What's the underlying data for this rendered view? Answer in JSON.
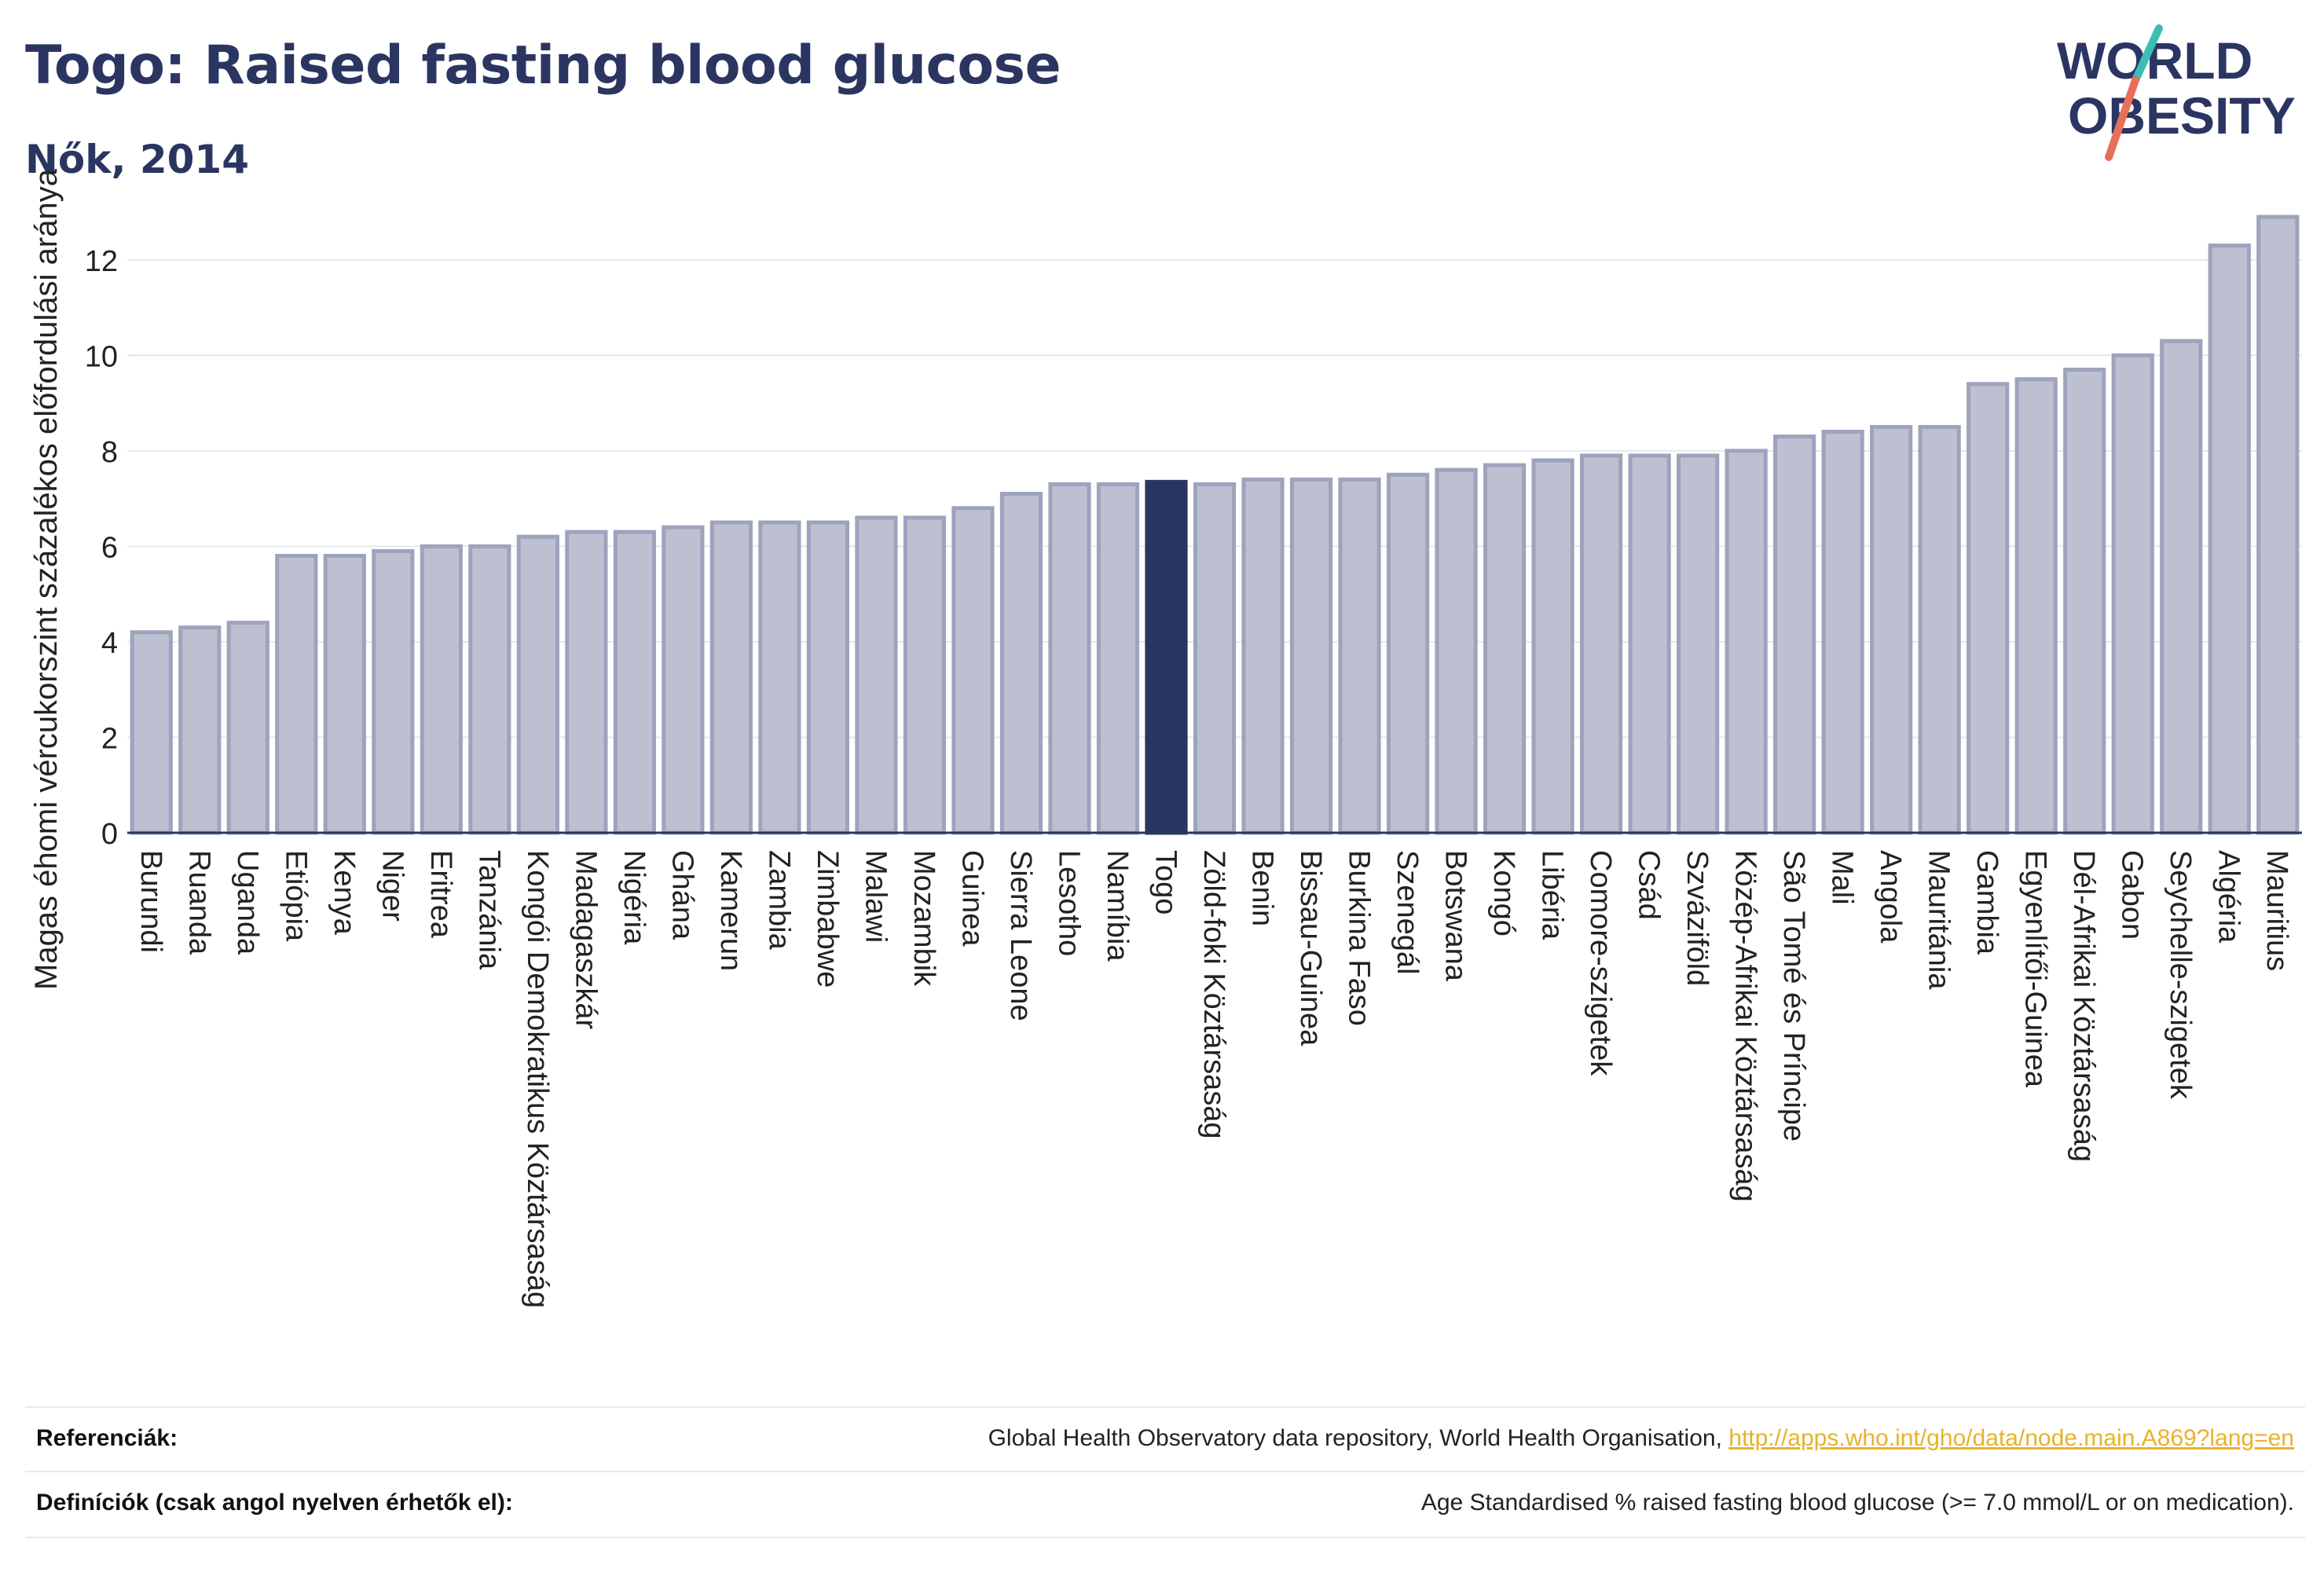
{
  "header": {
    "title": "Togo: Raised fasting blood glucose",
    "subtitle": "Nők, 2014"
  },
  "logo": {
    "line1": "WORLD",
    "line2": "OBESITY",
    "colors": {
      "text": "#2b3561",
      "slash_teal": "#3bbdb6",
      "slash_coral": "#e8705a"
    }
  },
  "chart_data": {
    "type": "bar",
    "title": "Togo: Raised fasting blood glucose",
    "subtitle": "Nők, 2014",
    "xlabel": "",
    "ylabel": "Magas éhomi vércukorszint százalékos előfordulási aránya",
    "ylim": [
      0,
      13
    ],
    "yticks": [
      0,
      2,
      4,
      6,
      8,
      10,
      12
    ],
    "grid": true,
    "highlight": "Togo",
    "colors": {
      "bar": "#bcc0d0",
      "bar_border": "#9ea3bd",
      "highlight": "#2b3561",
      "grid": "#e6e7ec",
      "axis": "#2b3561"
    },
    "categories": [
      "Burundi",
      "Ruanda",
      "Uganda",
      "Etiópia",
      "Kenya",
      "Niger",
      "Eritrea",
      "Tanzánia",
      "Kongói Demokratikus Köztársaság",
      "Madagaszkár",
      "Nigéria",
      "Ghána",
      "Kamerun",
      "Zambia",
      "Zimbabwe",
      "Malawi",
      "Mozambik",
      "Guinea",
      "Sierra Leone",
      "Lesotho",
      "Namíbia",
      "Togo",
      "Zöld-foki Köztársaság",
      "Benin",
      "Bissau-Guinea",
      "Burkina Faso",
      "Szenegál",
      "Botswana",
      "Kongó",
      "Libéria",
      "Comore-szigetek",
      "Csád",
      "Szváziföld",
      "Közép-Afrikai Köztársaság",
      "São Tomé és Príncipe",
      "Mali",
      "Angola",
      "Mauritánia",
      "Gambia",
      "Egyenlítői-Guinea",
      "Dél-Afrikai Köztársaság",
      "Gabon",
      "Seychelle-szigetek",
      "Algéria",
      "Mauritius"
    ],
    "values": [
      4.2,
      4.3,
      4.4,
      5.8,
      5.8,
      5.9,
      6.0,
      6.0,
      6.2,
      6.3,
      6.3,
      6.4,
      6.5,
      6.5,
      6.5,
      6.6,
      6.6,
      6.8,
      7.1,
      7.3,
      7.3,
      7.35,
      7.3,
      7.4,
      7.4,
      7.4,
      7.5,
      7.6,
      7.7,
      7.8,
      7.9,
      7.9,
      7.9,
      8.0,
      8.3,
      8.4,
      8.5,
      8.5,
      9.4,
      9.5,
      9.7,
      10.0,
      10.3,
      12.3,
      12.9
    ]
  },
  "footer": {
    "references_label": "Referenciák:",
    "references_text": "Global Health Observatory data repository, World Health Organisation, ",
    "references_link": "http://apps.who.int/gho/data/node.main.A869?lang=en",
    "definitions_label": "Definíciók (csak angol nyelven érhetők el):",
    "definitions_text": "Age Standardised % raised fasting blood glucose (>= 7.0 mmol/L or on medication)."
  }
}
